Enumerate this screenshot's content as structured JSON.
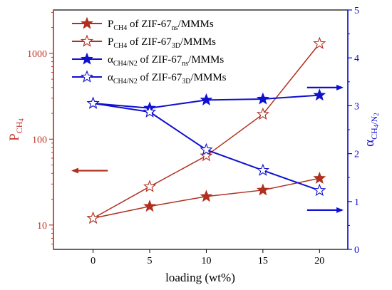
{
  "chart_data": {
    "type": "line",
    "xlabel": "loading (wt%)",
    "x": [
      0,
      5,
      10,
      15,
      20
    ],
    "x_ticks": [
      "0",
      "5",
      "10",
      "15",
      "20"
    ],
    "xlim": [
      -3.5,
      22.5
    ],
    "left_axis": {
      "label_main": "P",
      "label_sub": "CH",
      "label_sub2": "4",
      "scale": "log",
      "ylim": [
        5.2,
        3200
      ],
      "ticks": [
        10,
        100,
        1000
      ],
      "tick_labels": [
        "10",
        "100",
        "1000"
      ],
      "color": "#c0392b"
    },
    "right_axis": {
      "label_main": "α",
      "label_sub": "CH",
      "label_sub2": "4",
      "label_sub3": "/N",
      "label_sub4": "2",
      "ylim": [
        0,
        5
      ],
      "ticks": [
        0,
        1,
        2,
        3,
        4,
        5
      ],
      "tick_labels": [
        "0",
        "1",
        "2",
        "3",
        "4",
        "5"
      ],
      "color": "#1010d0"
    },
    "series": [
      {
        "legend_main": "P",
        "legend_sub": "CH4",
        "legend_rest": " of ZIF-67",
        "legend_sub2": "ns",
        "legend_tail": "/MMMs",
        "axis": "left",
        "color": "#b03020",
        "marker": "filled-star",
        "values": [
          12,
          16.5,
          21.5,
          25.5,
          35
        ]
      },
      {
        "legend_main": "P",
        "legend_sub": "CH4",
        "legend_rest": " of ZIF-67",
        "legend_sub2": "3D",
        "legend_tail": "/MMMs",
        "axis": "left",
        "color": "#b03020",
        "marker": "open-star",
        "values": [
          12,
          28,
          64,
          195,
          1300
        ]
      },
      {
        "legend_main": "α",
        "legend_sub": "CH4/N2",
        "legend_rest": " of  ZIF-67",
        "legend_sub2": "ns",
        "legend_tail": "/MMMs",
        "axis": "right",
        "color": "#1010d0",
        "marker": "filled-star",
        "values": [
          3.05,
          2.95,
          3.12,
          3.14,
          3.22
        ]
      },
      {
        "legend_main": "α",
        "legend_sub": "CH4/N2",
        "legend_rest": " of  ZIF-67",
        "legend_sub2": "3D",
        "legend_tail": "/MMMs",
        "axis": "right",
        "color": "#1010d0",
        "marker": "open-star",
        "values": [
          3.05,
          2.87,
          2.08,
          1.65,
          1.23
        ]
      }
    ],
    "annotations": [
      {
        "type": "arrow",
        "direction": "left",
        "axis": "left",
        "color": "#b03020",
        "x_from": 1.3,
        "x_to": -1.8,
        "y": 43
      },
      {
        "type": "arrow",
        "direction": "right",
        "axis": "right",
        "color": "#1010d0",
        "x_from": 18.9,
        "x_to": 22.0,
        "y": 3.38
      },
      {
        "type": "arrow",
        "direction": "right",
        "axis": "right",
        "color": "#1010d0",
        "x_from": 18.9,
        "x_to": 22.0,
        "y": 0.82
      }
    ],
    "legend_position": "top-left",
    "grid": false
  }
}
